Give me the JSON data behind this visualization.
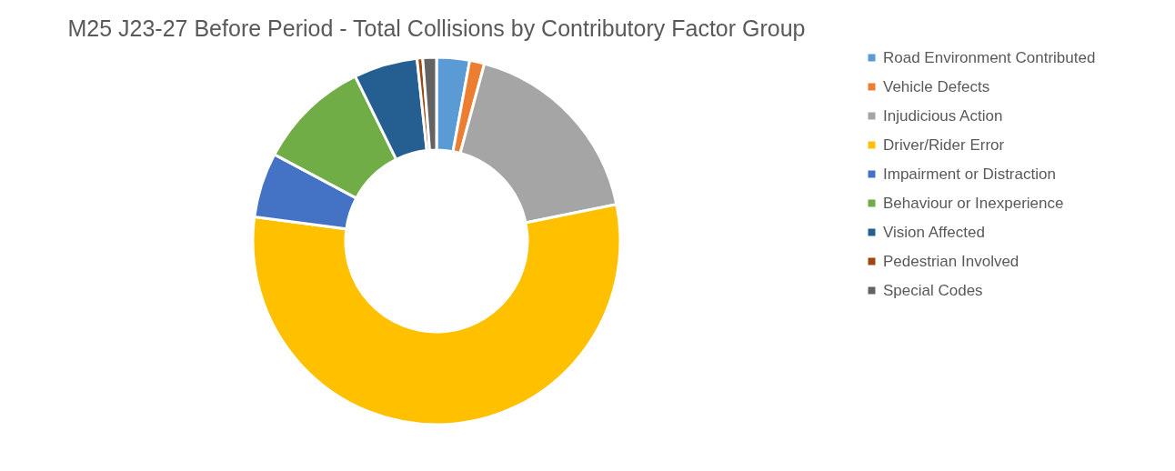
{
  "chart_data": {
    "type": "donut",
    "title": "M25 J23-27 Before Period - Total Collisions by Contributory Factor Group",
    "categories": [
      "Road Environment Contributed",
      "Vehicle Defects",
      "Injudicious Action",
      "Driver/Rider Error",
      "Impairment or Distraction",
      "Behaviour or Inexperience",
      "Vision Affected",
      "Pedestrian Involved",
      "Special Codes"
    ],
    "values": [
      2.9,
      1.3,
      17.6,
      55.3,
      5.7,
      9.9,
      5.6,
      0.5,
      1.2
    ],
    "colors": [
      "#5b9bd5",
      "#ed7d31",
      "#a5a5a5",
      "#ffc000",
      "#4472c4",
      "#70ad47",
      "#255e91",
      "#9e480e",
      "#636363"
    ],
    "legend": "right"
  }
}
